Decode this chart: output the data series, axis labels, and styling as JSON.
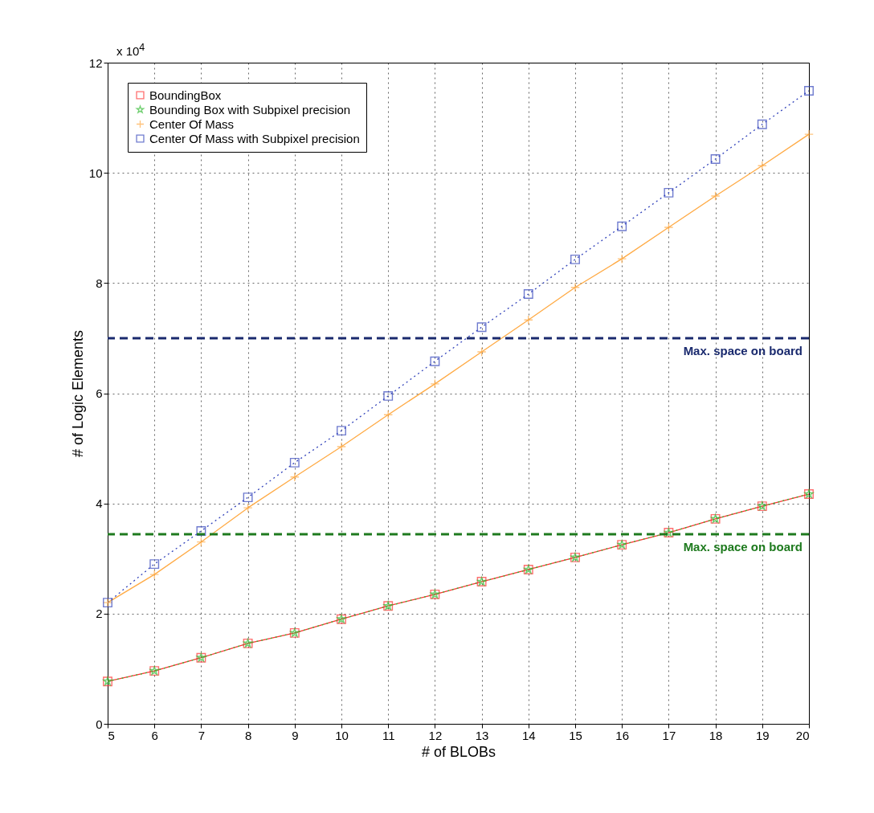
{
  "chart_data": {
    "type": "line",
    "xlabel": "# of BLOBs",
    "ylabel": "# of Logic Elements",
    "annotations": [
      "x 10$^{4}$"
    ],
    "x": [
      5,
      6,
      7,
      8,
      9,
      10,
      11,
      12,
      13,
      14,
      15,
      16,
      17,
      18,
      19,
      20
    ],
    "series": [
      {
        "name": "BoundingBox",
        "color": "#ff3333",
        "marker": "square",
        "line_style": "solid",
        "values": [
          0.77,
          0.96,
          1.2,
          1.46,
          1.65,
          1.9,
          2.14,
          2.35,
          2.58,
          2.8,
          3.02,
          3.25,
          3.47,
          3.72,
          3.95,
          4.17
        ]
      },
      {
        "name": "Bounding Box with Subpixel precision",
        "color": "#33bb33",
        "marker": "star",
        "line_style": "dotted",
        "values": [
          0.77,
          0.96,
          1.2,
          1.46,
          1.65,
          1.9,
          2.14,
          2.35,
          2.58,
          2.8,
          3.02,
          3.25,
          3.47,
          3.72,
          3.95,
          4.17
        ]
      },
      {
        "name": "Center Of Mass",
        "color": "#ffaa44",
        "marker": "cross",
        "line_style": "solid",
        "values": [
          2.2,
          2.71,
          3.3,
          3.92,
          4.48,
          5.03,
          5.61,
          6.17,
          6.75,
          7.33,
          7.92,
          8.44,
          9.01,
          9.58,
          10.13,
          10.7
        ]
      },
      {
        "name": "Center Of Mass with Subpixel precision",
        "color": "#3344bb",
        "marker": "square",
        "line_style": "dotted",
        "values": [
          2.2,
          2.9,
          3.5,
          4.11,
          4.74,
          5.32,
          5.95,
          6.58,
          7.2,
          7.8,
          8.43,
          9.03,
          9.64,
          10.25,
          10.88,
          11.49
        ]
      }
    ],
    "ref_lines": [
      {
        "axis": "y",
        "value": 7.0,
        "label": "Max. space on board",
        "color": "#1a2a6e",
        "line_style": "dashed"
      },
      {
        "axis": "y",
        "value": 3.44,
        "label": "Max. space on board",
        "color": "#1e7a1e",
        "line_style": "dashed"
      }
    ],
    "xlim": [
      5,
      20
    ],
    "xticks": [
      5,
      6,
      7,
      8,
      9,
      10,
      11,
      12,
      13,
      14,
      15,
      16,
      17,
      18,
      19,
      20
    ],
    "ylim": [
      0,
      12
    ],
    "yticks": [
      0,
      2,
      4,
      6,
      8,
      10,
      12
    ],
    "grid": true,
    "legend": "top left"
  }
}
